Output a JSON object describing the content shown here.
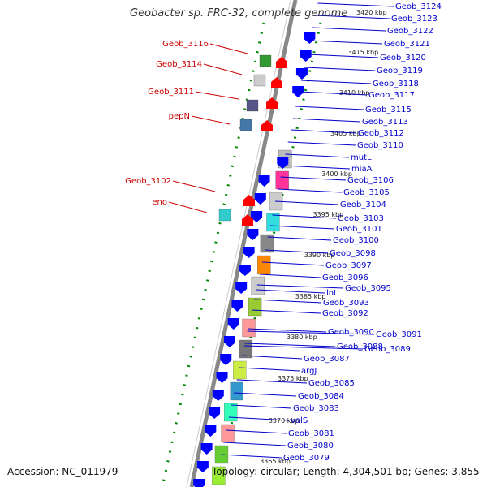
{
  "title": "Geobacter sp. FRC-32, complete genome",
  "accession": "Accession: NC_011979",
  "summary": "Topology: circular; Length: 4,304,501 bp; Genes: 3,855",
  "colors": {
    "axis": "#888888",
    "forward_arrow": "#ff0000",
    "reverse_arrow": "#0000ff",
    "tick_dots": "#008800",
    "left_label": "#cc0000",
    "right_label": "#0000cc"
  },
  "ticks": [
    "3420 kbp",
    "3415 kbp",
    "3410 kbp",
    "3405 kbp",
    "3400 kbp",
    "3395 kbp",
    "3390 kbp",
    "3385 kbp",
    "3380 kbp",
    "3375 kbp",
    "3370 kbp",
    "3365 kbp"
  ],
  "left_labels": [
    "Geob_3116",
    "Geob_3114",
    "Geob_3111",
    "pepN",
    "Geob_3102",
    "eno"
  ],
  "right_labels": [
    "Geob_3124",
    "Geob_3123",
    "Geob_3122",
    "Geob_3121",
    "Geob_3120",
    "Geob_3119",
    "Geob_3118",
    "Geob_3117",
    "Geob_3115",
    "Geob_3113",
    "Geob_3112",
    "Geob_3110",
    "mutL",
    "miaA",
    "Geob_3106",
    "Geob_3105",
    "Geob_3104",
    "Geob_3103",
    "Geob_3101",
    "Geob_3100",
    "Geob_3098",
    "Geob_3097",
    "Geob_3096",
    "Geob_3095",
    "lnt",
    "Geob_3093",
    "Geob_3092",
    "Geob_3090",
    "Geob_3091",
    "Geob_3088",
    "Geob_3089",
    "Geob_3087",
    "argJ",
    "Geob_3085",
    "Geob_3084",
    "Geob_3083",
    "valS",
    "Geob_3081",
    "Geob_3080",
    "Geob_3079"
  ]
}
